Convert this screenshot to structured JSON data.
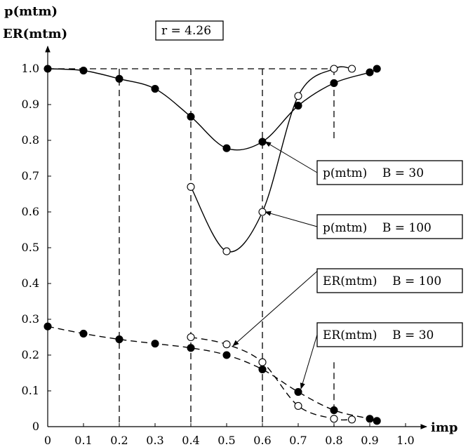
{
  "chart_data": {
    "type": "line",
    "ylabel_top": "p(mtm)",
    "ylabel_bottom": "ER(mtm)",
    "xlabel": "imp",
    "annotation": "r = 4.26",
    "xlim": [
      0,
      1.0
    ],
    "ylim": [
      0,
      1.0
    ],
    "x_ticks": [
      "0",
      "0.1",
      "0.2",
      "0.3",
      "0.4",
      "0.5",
      "0.6",
      "0.7",
      "0.8",
      "0.9",
      "1.0"
    ],
    "y_ticks": [
      "0",
      "0.1",
      "0.2",
      "0.3",
      "0.4",
      "0.5",
      "0.6",
      "0.7",
      "0.8",
      "0.9",
      "1.0"
    ],
    "vertical_reference_x": [
      0.2,
      0.4,
      0.6,
      0.8
    ],
    "horizontal_reference_y": 1.0,
    "series": [
      {
        "name": "p(mtm)    B = 30",
        "line": "solid",
        "marker": "filled",
        "x": [
          0,
          0.1,
          0.2,
          0.3,
          0.4,
          0.5,
          0.6,
          0.7,
          0.8,
          0.9,
          0.92
        ],
        "y": [
          1.0,
          0.995,
          0.972,
          0.944,
          0.866,
          0.778,
          0.796,
          0.897,
          0.96,
          0.99,
          1.0
        ]
      },
      {
        "name": "p(mtm)    B = 100",
        "line": "solid",
        "marker": "open",
        "x": [
          0.4,
          0.5,
          0.6,
          0.7,
          0.8,
          0.85
        ],
        "y": [
          0.67,
          0.49,
          0.6,
          0.924,
          1.0,
          1.0
        ]
      },
      {
        "name": "ER(mtm)    B = 100",
        "line": "dashed",
        "marker": "open",
        "x": [
          0.4,
          0.5,
          0.6,
          0.7,
          0.8,
          0.85
        ],
        "y": [
          0.25,
          0.23,
          0.18,
          0.058,
          0.022,
          0.02
        ]
      },
      {
        "name": "ER(mtm)    B = 30",
        "line": "dashed",
        "marker": "filled",
        "x": [
          0,
          0.1,
          0.2,
          0.3,
          0.4,
          0.5,
          0.6,
          0.7,
          0.8,
          0.9,
          0.92
        ],
        "y": [
          0.28,
          0.26,
          0.244,
          0.232,
          0.22,
          0.2,
          0.16,
          0.097,
          0.046,
          0.022,
          0.016
        ]
      }
    ],
    "legend_placement": "right",
    "grid": false
  }
}
